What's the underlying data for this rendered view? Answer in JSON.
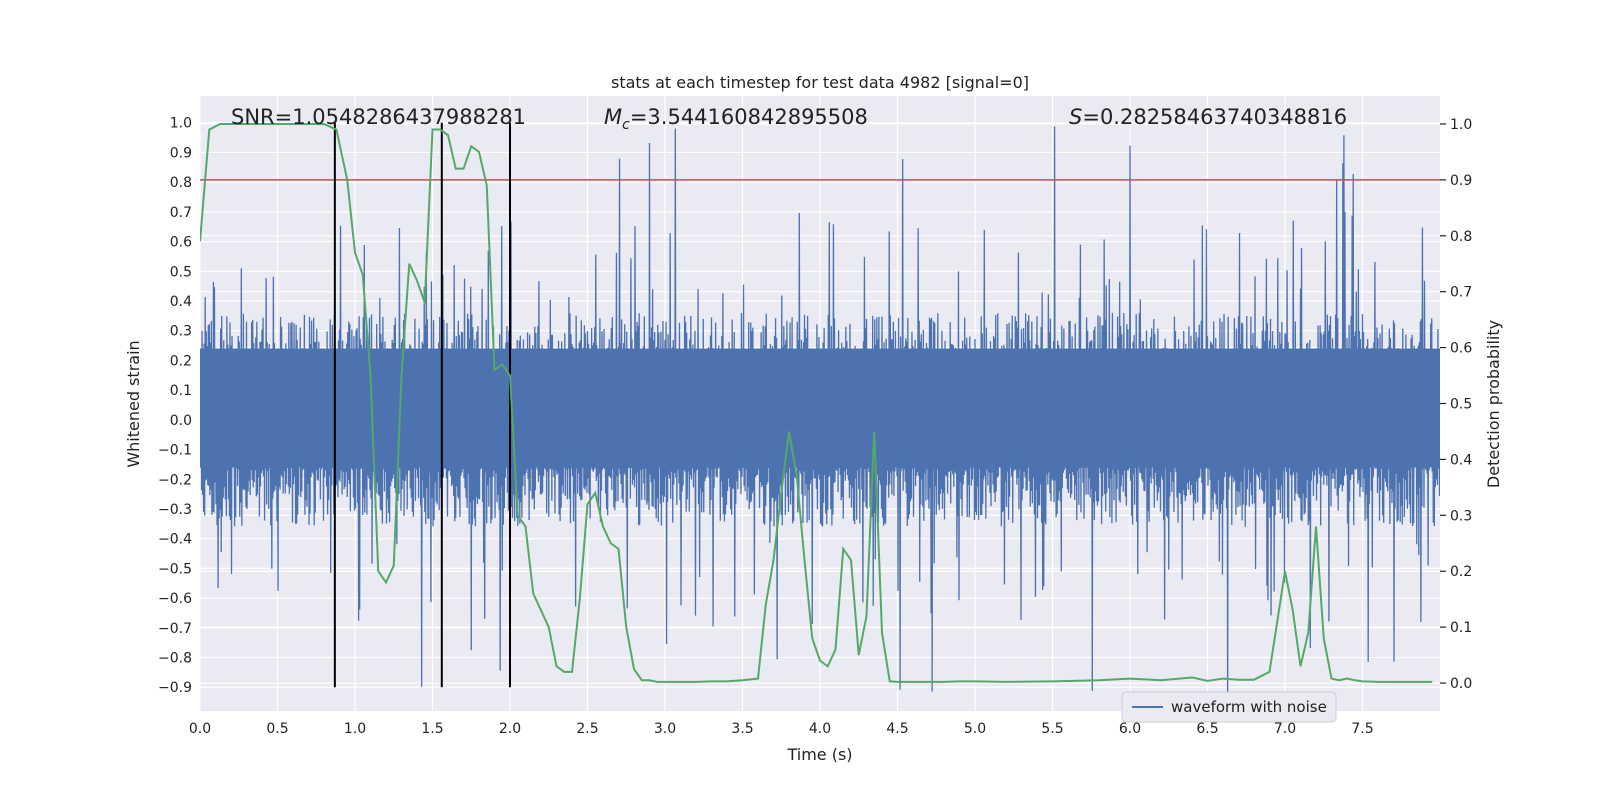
{
  "chart_data": {
    "type": "line",
    "title": "stats at each timestep for test data 4982 [signal=0]",
    "xlabel": "Time (s)",
    "ylabel_left": "Whitened strain",
    "ylabel_right": "Detection probability",
    "xlim": [
      0,
      8
    ],
    "ylim_left": [
      -0.98,
      1.09
    ],
    "ylim_right": [
      -0.05,
      1.05
    ],
    "x_ticks": [
      "0.0",
      "0.5",
      "1.0",
      "1.5",
      "2.0",
      "2.5",
      "3.0",
      "3.5",
      "4.0",
      "4.5",
      "5.0",
      "5.5",
      "6.0",
      "6.5",
      "7.0",
      "7.5"
    ],
    "x_tick_values": [
      0,
      0.5,
      1,
      1.5,
      2,
      2.5,
      3,
      3.5,
      4,
      4.5,
      5,
      5.5,
      6,
      6.5,
      7,
      7.5
    ],
    "y_left_ticks": [
      "1.0",
      "0.9",
      "0.8",
      "0.7",
      "0.6",
      "0.5",
      "0.4",
      "0.3",
      "0.2",
      "0.1",
      "0.0",
      "−0.1",
      "−0.2",
      "−0.3",
      "−0.4",
      "−0.5",
      "−0.6",
      "−0.7",
      "−0.8",
      "−0.9"
    ],
    "y_left_tick_values": [
      1,
      0.9,
      0.8,
      0.7,
      0.6,
      0.5,
      0.4,
      0.3,
      0.2,
      0.1,
      0,
      -0.1,
      -0.2,
      -0.3,
      -0.4,
      -0.5,
      -0.6,
      -0.7,
      -0.8,
      -0.9
    ],
    "y_right_ticks": [
      "1.0",
      "0.9",
      "0.8",
      "0.7",
      "0.6",
      "0.5",
      "0.4",
      "0.3",
      "0.2",
      "0.1",
      "0.0"
    ],
    "y_right_tick_values": [
      1,
      0.9,
      0.8,
      0.7,
      0.6,
      0.5,
      0.4,
      0.3,
      0.2,
      0.1,
      0
    ],
    "annotations": {
      "snr": "SNR=1.0548286437988281",
      "mc_symbol": "M",
      "mc_sub": "c",
      "mc_value": "=3.544160842895508",
      "s_symbol": "S",
      "s_value": "=0.28258463740348816"
    },
    "threshold": {
      "value": 0.9,
      "axis": "right",
      "color": "#c44e52"
    },
    "vertical_lines": {
      "x": [
        0.87,
        1.56,
        2.0
      ],
      "y_range_left": [
        -0.9,
        1.0
      ],
      "color": "#000000"
    },
    "series": [
      {
        "name": "waveform with noise",
        "axis": "left",
        "color": "#4c72b0",
        "description_note": "noise waveform, envelope approx ±0.45, spikes up to ~1.0"
      },
      {
        "axis": "right",
        "color": "#55a868",
        "x": [
          0.0,
          0.06,
          0.13,
          0.2,
          0.3,
          0.4,
          0.5,
          0.6,
          0.7,
          0.8,
          0.88,
          0.95,
          1.0,
          1.05,
          1.1,
          1.15,
          1.2,
          1.25,
          1.3,
          1.35,
          1.4,
          1.45,
          1.5,
          1.55,
          1.6,
          1.65,
          1.7,
          1.75,
          1.8,
          1.85,
          1.9,
          1.95,
          2.0,
          2.05,
          2.1,
          2.15,
          2.2,
          2.25,
          2.3,
          2.35,
          2.4,
          2.45,
          2.5,
          2.55,
          2.6,
          2.65,
          2.7,
          2.75,
          2.8,
          2.85,
          2.9,
          2.95,
          3.0,
          3.05,
          3.1,
          3.15,
          3.2,
          3.3,
          3.4,
          3.5,
          3.6,
          3.65,
          3.7,
          3.75,
          3.8,
          3.85,
          3.9,
          3.95,
          4.0,
          4.05,
          4.1,
          4.15,
          4.2,
          4.25,
          4.3,
          4.35,
          4.4,
          4.45,
          4.5,
          4.55,
          4.6,
          4.65,
          4.7,
          4.75,
          4.8,
          4.9,
          5.0,
          5.2,
          5.5,
          5.8,
          6.0,
          6.2,
          6.4,
          6.5,
          6.6,
          6.7,
          6.8,
          6.9,
          7.0,
          7.05,
          7.1,
          7.15,
          7.2,
          7.25,
          7.3,
          7.35,
          7.4,
          7.45,
          7.5,
          7.6,
          7.7,
          7.8,
          7.95
        ],
        "y": [
          0.79,
          0.99,
          1.0,
          1.0,
          1.0,
          1.0,
          1.0,
          1.0,
          1.0,
          1.0,
          0.99,
          0.9,
          0.77,
          0.73,
          0.55,
          0.2,
          0.18,
          0.21,
          0.55,
          0.75,
          0.72,
          0.68,
          0.99,
          0.99,
          0.98,
          0.92,
          0.92,
          0.96,
          0.95,
          0.89,
          0.56,
          0.57,
          0.55,
          0.3,
          0.28,
          0.16,
          0.13,
          0.1,
          0.03,
          0.02,
          0.02,
          0.15,
          0.32,
          0.34,
          0.28,
          0.25,
          0.24,
          0.1,
          0.025,
          0.005,
          0.005,
          0.002,
          0.002,
          0.002,
          0.002,
          0.002,
          0.002,
          0.003,
          0.003,
          0.005,
          0.008,
          0.14,
          0.22,
          0.34,
          0.45,
          0.37,
          0.22,
          0.08,
          0.04,
          0.03,
          0.06,
          0.24,
          0.22,
          0.05,
          0.12,
          0.45,
          0.09,
          0.003,
          0.002,
          0.002,
          0.002,
          0.002,
          0.002,
          0.002,
          0.002,
          0.003,
          0.003,
          0.002,
          0.003,
          0.005,
          0.008,
          0.005,
          0.01,
          0.004,
          0.008,
          0.006,
          0.006,
          0.02,
          0.2,
          0.13,
          0.03,
          0.09,
          0.28,
          0.08,
          0.008,
          0.005,
          0.008,
          0.005,
          0.003,
          0.002,
          0.002,
          0.002,
          0.002
        ]
      }
    ],
    "legend": {
      "placement": "lower-right"
    },
    "grid": true,
    "colors": {
      "background": "#eaeaf2",
      "grid": "#ffffff"
    }
  }
}
